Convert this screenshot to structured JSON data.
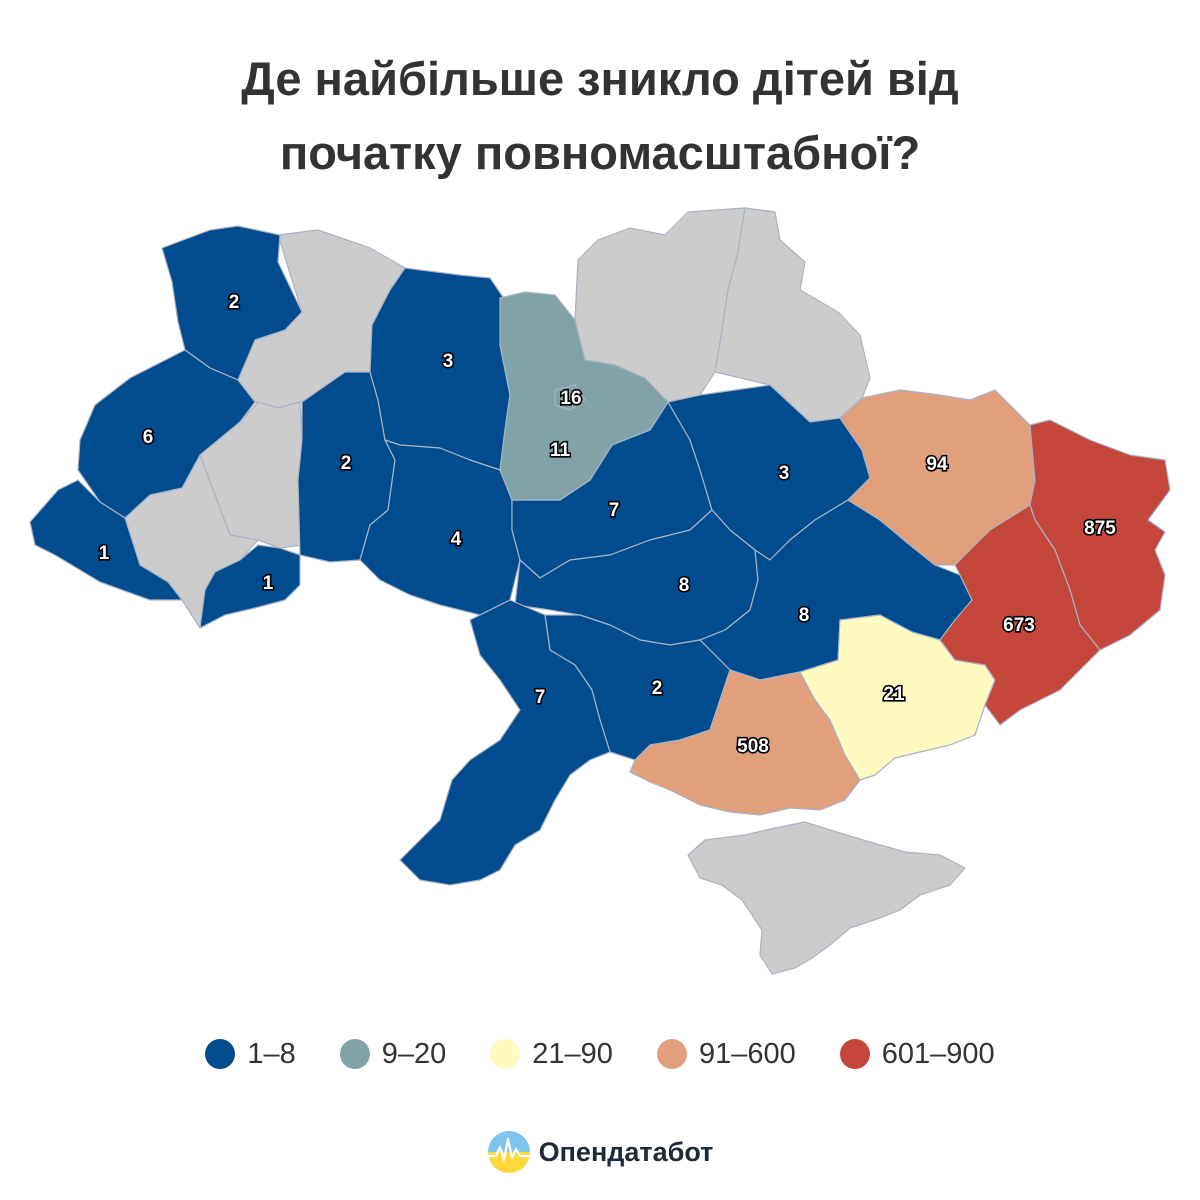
{
  "title": {
    "line1": "Де найбільше зникло дітей від",
    "line2": "початку повномасштабної?"
  },
  "colors": {
    "1-8": "#004c8f",
    "9-20": "#81a3a7",
    "21-90": "#fefac0",
    "91-600": "#e1a07b",
    "601-900": "#c5463a",
    "no-data": "#cccccc"
  },
  "legend": [
    {
      "label": "1–8",
      "color": "#004c8f"
    },
    {
      "label": "9–20",
      "color": "#81a3a7"
    },
    {
      "label": "21–90",
      "color": "#fefac0"
    },
    {
      "label": "91–600",
      "color": "#e1a07b"
    },
    {
      "label": "601–900",
      "color": "#c5463a"
    }
  ],
  "regions": {
    "volyn": "2",
    "lviv": "6",
    "zakarpattia": "1",
    "chernivtsi": "1",
    "khmelnytskyi": "2",
    "zhytomyr": "3",
    "kyiv_city": "16",
    "kyiv_oblast": "11",
    "vinnytsia": "4",
    "cherkasy": "7",
    "poltava": "3",
    "kharkiv": "94",
    "luhansk": "875",
    "donetsk": "673",
    "kirovohrad": "8",
    "dnipropetrovsk": "8",
    "zaporizhzhia": "21",
    "kherson": "508",
    "mykolaiv": "2",
    "odesa": "7"
  },
  "brand": {
    "name": "Опендатабот",
    "logo_icon": "opendatabot-logo-icon"
  }
}
